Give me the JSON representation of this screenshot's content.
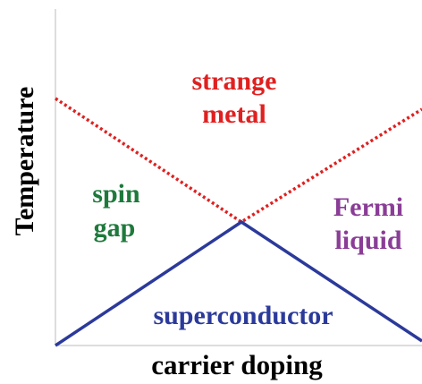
{
  "axes": {
    "y_label": "Temperature",
    "x_label": "carrier doping"
  },
  "regions": [
    {
      "lines": [
        "strange",
        "metal"
      ],
      "color": "#e02020"
    },
    {
      "lines": [
        "spin",
        "gap"
      ],
      "color": "#1e7a3c"
    },
    {
      "lines": [
        "Fermi",
        "liquid"
      ],
      "color": "#8a3d96"
    },
    {
      "lines": [
        "superconductor"
      ],
      "color": "#2b3a9a"
    }
  ]
}
